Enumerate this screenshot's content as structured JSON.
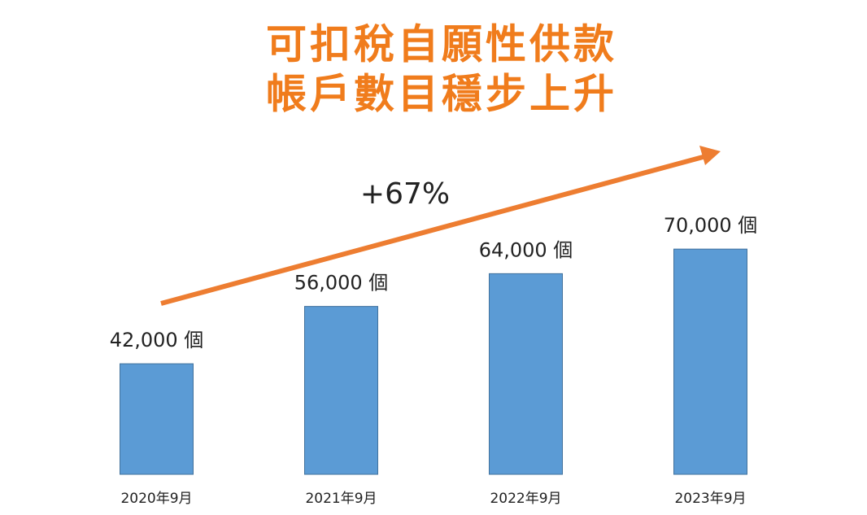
{
  "chart_data": {
    "type": "bar",
    "title": [
      "可扣稅自願性供款",
      "帳戶數目穩步上升"
    ],
    "annotation": "+67%",
    "categories": [
      "2020年9月",
      "2021年9月",
      "2022年9月",
      "2023年9月"
    ],
    "values": [
      42000,
      56000,
      64000,
      70000
    ],
    "value_labels": [
      "42,000 個",
      "56,000 個",
      "64,000 個",
      "70,000 個"
    ],
    "color": "#5b9bd5",
    "title_color": "#f07c1c",
    "arrow_color": "#ed7d31",
    "ylim": [
      15000,
      75000
    ]
  }
}
